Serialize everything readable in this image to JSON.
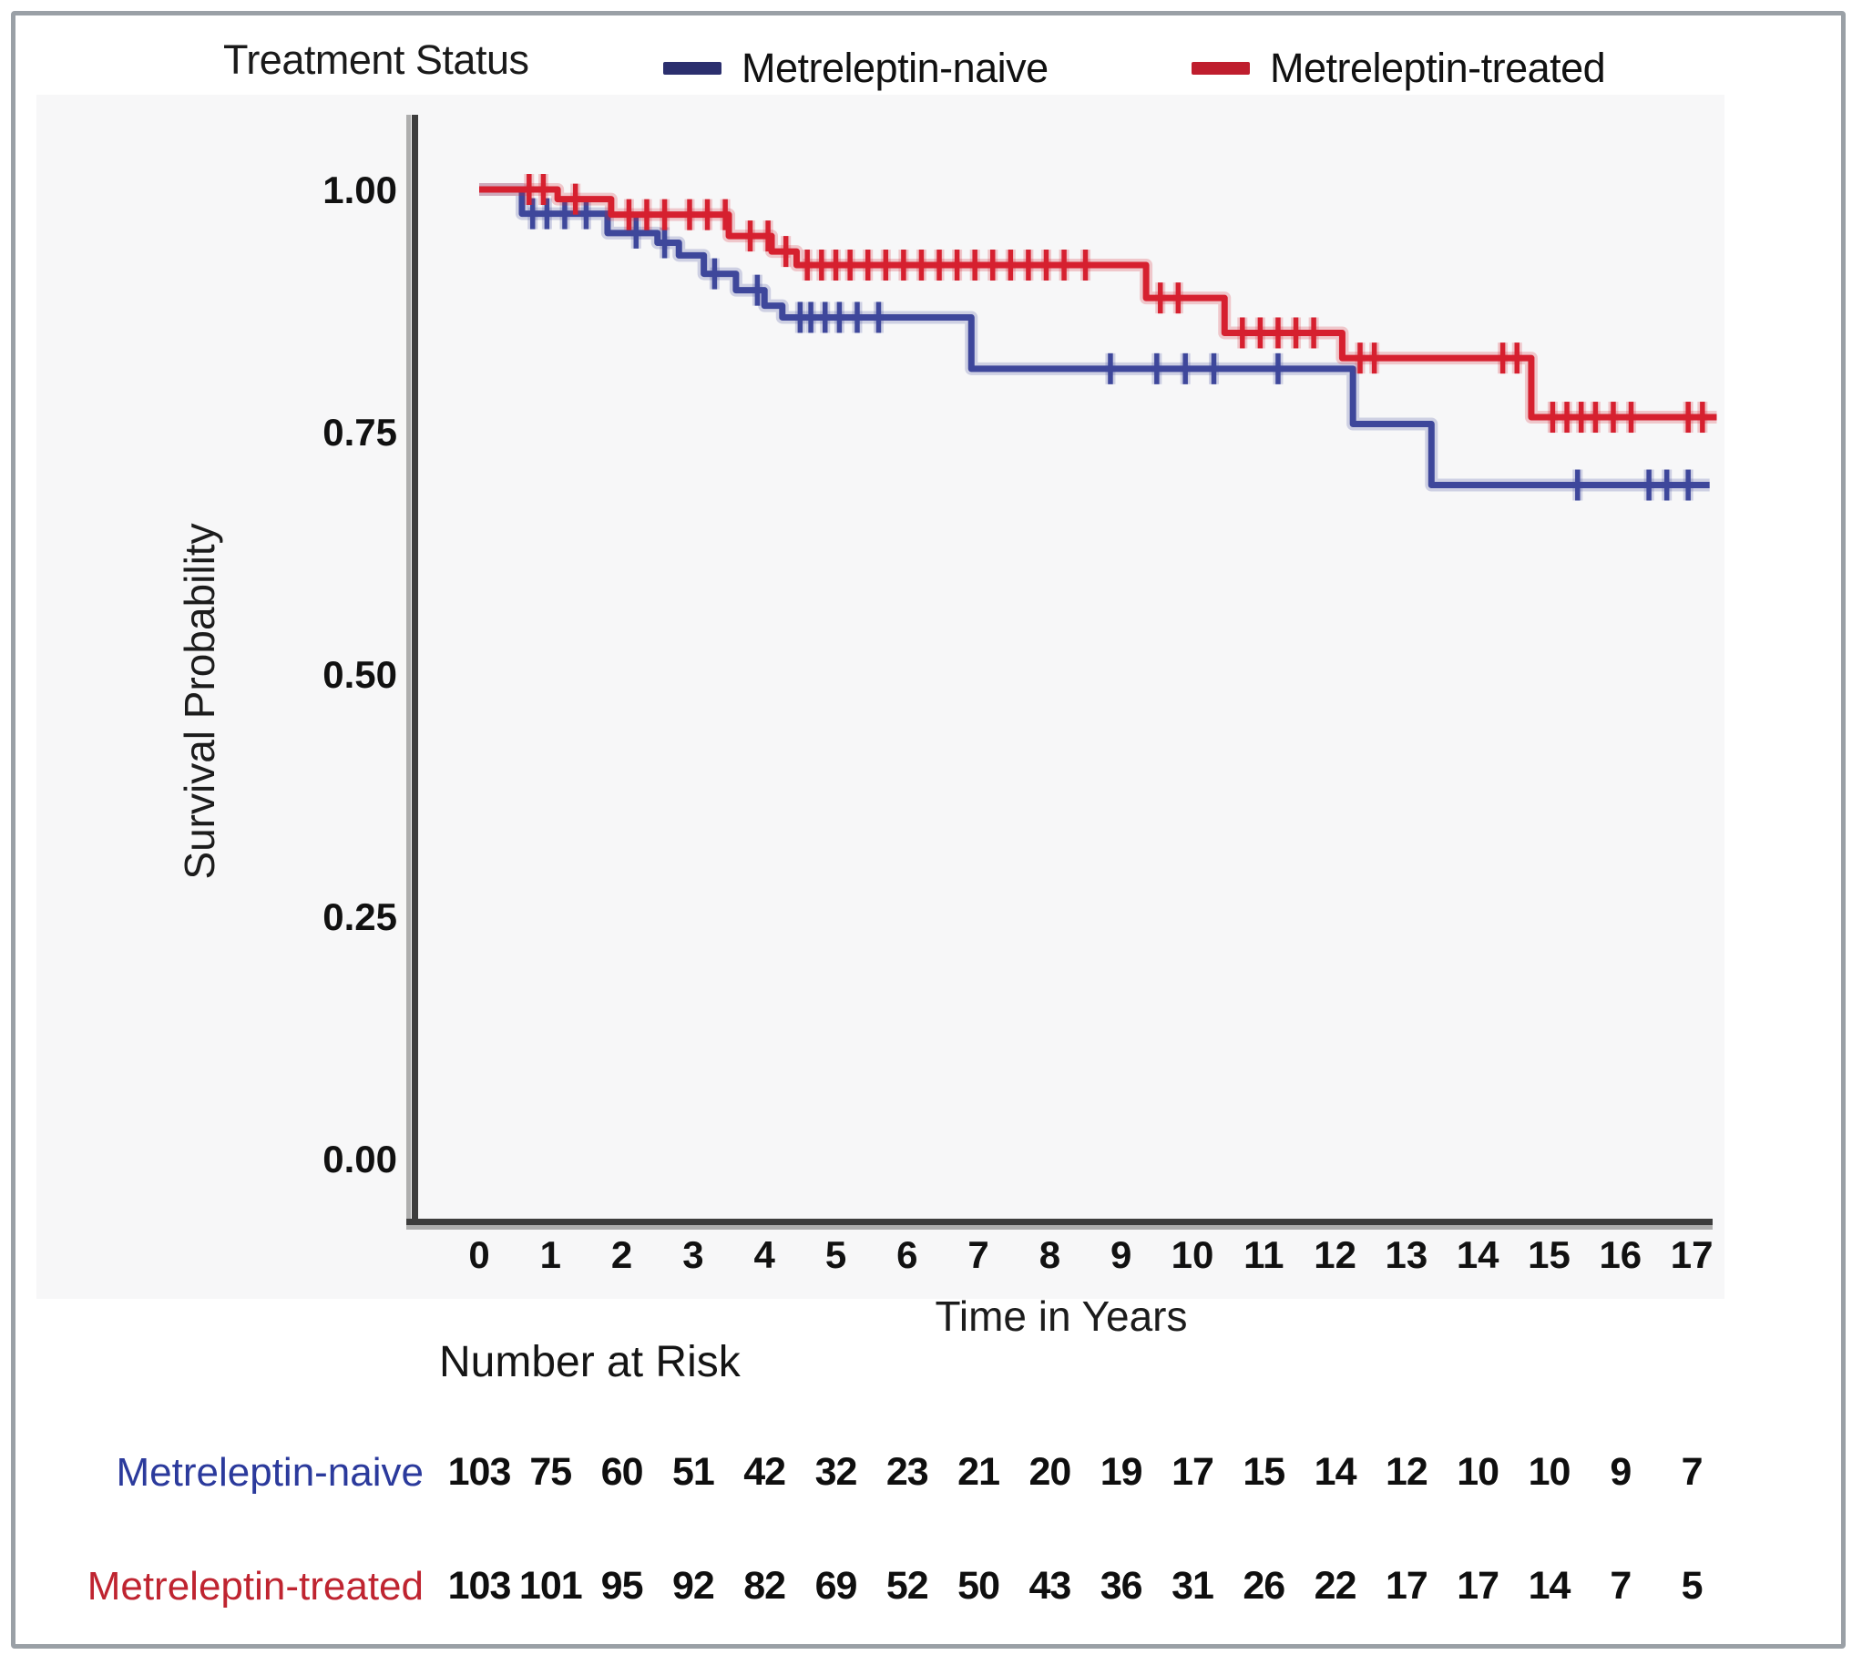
{
  "chart_data": {
    "type": "line",
    "subtype": "kaplan-meier-step",
    "legend_title": "Treatment Status",
    "xlabel": "Time in Years",
    "ylabel": "Survival Probability",
    "xlim": [
      0,
      17.6
    ],
    "ylim": [
      0,
      1.0
    ],
    "grid": false,
    "legend_position": "top",
    "xticks": [
      0,
      1,
      2,
      3,
      4,
      5,
      6,
      7,
      8,
      9,
      10,
      11,
      12,
      13,
      14,
      15,
      16,
      17
    ],
    "ytick_labels": [
      "1.00",
      "0.75",
      "0.50",
      "0.25",
      "0.00"
    ],
    "ytick_values": [
      1.0,
      0.75,
      0.5,
      0.25,
      0.0
    ],
    "series": [
      {
        "name": "Metreleptin-naive",
        "color": "#3e479b",
        "label_color": "#2b3a9c",
        "steps": [
          [
            0,
            1.0
          ],
          [
            0.6,
            0.975
          ],
          [
            1.8,
            0.955
          ],
          [
            2.5,
            0.945
          ],
          [
            2.8,
            0.932
          ],
          [
            3.15,
            0.913
          ],
          [
            3.6,
            0.896
          ],
          [
            4.0,
            0.88
          ],
          [
            4.25,
            0.868
          ],
          [
            6.9,
            0.815
          ],
          [
            12.25,
            0.758
          ],
          [
            13.35,
            0.695
          ]
        ],
        "end_time": 17.25,
        "censor_times": [
          0.75,
          0.95,
          1.2,
          1.5,
          2.2,
          2.6,
          3.3,
          3.9,
          4.5,
          4.65,
          4.85,
          5.05,
          5.3,
          5.6,
          8.85,
          9.5,
          9.9,
          10.3,
          11.2,
          15.4,
          16.4,
          16.65,
          16.95
        ]
      },
      {
        "name": "Metreleptin-treated",
        "color": "#d6202f",
        "label_color": "#bf2430",
        "steps": [
          [
            0,
            1.0
          ],
          [
            1.1,
            0.99
          ],
          [
            1.85,
            0.974
          ],
          [
            3.5,
            0.952
          ],
          [
            4.1,
            0.936
          ],
          [
            4.45,
            0.922
          ],
          [
            9.35,
            0.888
          ],
          [
            10.45,
            0.852
          ],
          [
            12.1,
            0.826
          ],
          [
            14.75,
            0.765
          ]
        ],
        "end_time": 17.35,
        "censor_times": [
          0.7,
          0.9,
          1.35,
          2.1,
          2.35,
          2.6,
          2.95,
          3.2,
          3.45,
          3.8,
          4.05,
          4.3,
          4.6,
          4.8,
          5.0,
          5.2,
          5.45,
          5.7,
          5.95,
          6.2,
          6.45,
          6.7,
          6.95,
          7.2,
          7.45,
          7.7,
          7.95,
          8.2,
          8.5,
          9.55,
          9.8,
          10.7,
          10.95,
          11.2,
          11.45,
          11.7,
          12.35,
          12.55,
          14.35,
          14.55,
          15.05,
          15.25,
          15.45,
          15.65,
          15.9,
          16.15,
          16.95,
          17.15
        ]
      }
    ],
    "risk_table": {
      "title": "Number at Risk",
      "rows": [
        {
          "label": "Metreleptin-naive",
          "color": "#2b3a9c",
          "values": [
            103,
            75,
            60,
            51,
            42,
            32,
            23,
            21,
            20,
            19,
            17,
            15,
            14,
            12,
            10,
            10,
            9,
            7
          ]
        },
        {
          "label": "Metreleptin-treated",
          "color": "#bf2430",
          "values": [
            103,
            101,
            95,
            92,
            82,
            69,
            52,
            50,
            43,
            36,
            31,
            26,
            22,
            17,
            17,
            14,
            7,
            5
          ]
        }
      ]
    }
  }
}
